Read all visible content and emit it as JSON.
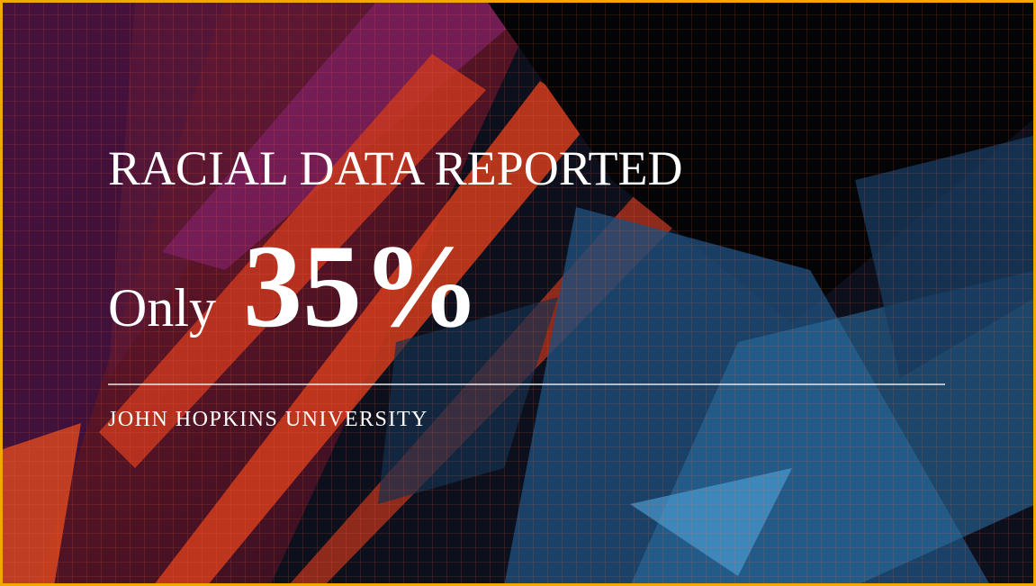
{
  "slide": {
    "title": "RACIAL DATA REPORTED",
    "prefix": "Only",
    "figure": "35%",
    "source": "JOHN HOPKINS UNIVERSITY"
  }
}
